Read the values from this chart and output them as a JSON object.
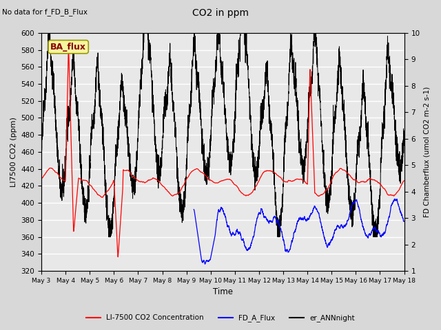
{
  "title": "CO2 in ppm",
  "top_left_text": "No data for f_FD_B_Flux",
  "box_label": "BA_flux",
  "xlabel": "Time",
  "ylabel_left": "LI7500 CO2 (ppm)",
  "ylabel_right": "FD Chamberflux (umol CO2 m-2 s-1)",
  "ylim_left": [
    320,
    600
  ],
  "ylim_right": [
    1.0,
    10.0
  ],
  "yticks_left": [
    320,
    340,
    360,
    380,
    400,
    420,
    440,
    460,
    480,
    500,
    520,
    540,
    560,
    580,
    600
  ],
  "yticks_right": [
    1.0,
    2.0,
    3.0,
    4.0,
    5.0,
    6.0,
    7.0,
    8.0,
    9.0,
    10.0
  ],
  "xtick_labels": [
    "May 3",
    "May 4",
    "May 5",
    "May 6",
    "May 7",
    "May 8",
    "May 9",
    "May 10",
    "May 11",
    "May 12",
    "May 13",
    "May 14",
    "May 15",
    "May 16",
    "May 17",
    "May 18"
  ],
  "legend_entries": [
    {
      "label": "LI-7500 CO2 Concentration",
      "color": "#ff0000",
      "linestyle": "-"
    },
    {
      "label": "FD_A_Flux",
      "color": "#0000ff",
      "linestyle": "-"
    },
    {
      "label": "er_ANNnight",
      "color": "#000000",
      "linestyle": "-"
    }
  ],
  "background_color": "#d8d8d8",
  "plot_bg_color": "#e8e8e8",
  "grid_color": "#ffffff",
  "n_points": 3600,
  "days": 15
}
